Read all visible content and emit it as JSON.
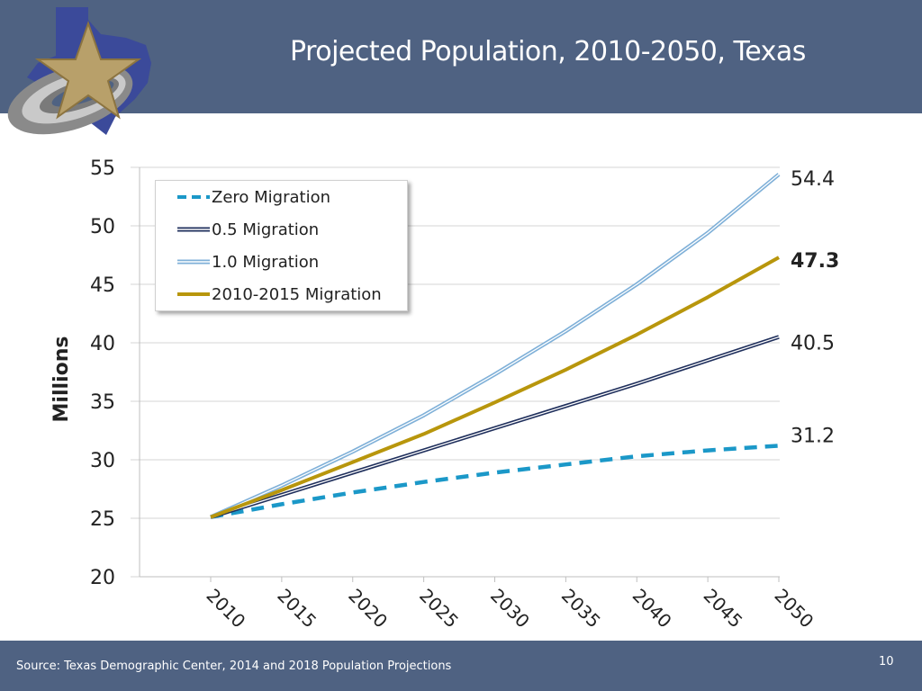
{
  "header": {
    "title": "Projected Population, 2010-2050, Texas"
  },
  "footer": {
    "source": "Source: Texas Demographic Center, 2014 and 2018 Population Projections",
    "page_number": "10"
  },
  "colors": {
    "header_bg": "#4f6282",
    "zero": "#1b98c8",
    "half": "#1f2f5c",
    "one": "#7fb0d8",
    "recent": "#b8960c"
  },
  "chart_data": {
    "type": "line",
    "title": "",
    "xlabel": "",
    "ylabel": "Millions",
    "x": [
      "2010",
      "2015",
      "2020",
      "2025",
      "2030",
      "2035",
      "2040",
      "2045",
      "2050"
    ],
    "ylim": [
      20,
      55
    ],
    "yticks": [
      "20",
      "25",
      "30",
      "35",
      "40",
      "45",
      "50",
      "55"
    ],
    "legend_position": "top-left",
    "grid": true,
    "series": [
      {
        "name": "Zero Migration",
        "style": "dashed",
        "values": [
          25.1,
          26.2,
          27.2,
          28.1,
          28.9,
          29.6,
          30.3,
          30.8,
          31.2
        ]
      },
      {
        "name": "0.5 Migration",
        "style": "double-dark",
        "values": [
          25.1,
          27.0,
          28.9,
          30.8,
          32.7,
          34.6,
          36.5,
          38.5,
          40.5
        ]
      },
      {
        "name": "1.0 Migration",
        "style": "double-light",
        "values": [
          25.1,
          27.8,
          30.7,
          33.8,
          37.3,
          41.0,
          45.0,
          49.4,
          54.4
        ]
      },
      {
        "name": "2010-2015 Migration",
        "style": "solid-gold",
        "values": [
          25.1,
          27.4,
          29.8,
          32.2,
          34.9,
          37.7,
          40.7,
          43.9,
          47.3
        ]
      }
    ],
    "end_labels": [
      {
        "text": "54.4",
        "value": 54.4,
        "bold": false
      },
      {
        "text": "47.3",
        "value": 47.3,
        "bold": true
      },
      {
        "text": "40.5",
        "value": 40.5,
        "bold": false
      },
      {
        "text": "31.2",
        "value": 31.2,
        "bold": false
      }
    ]
  }
}
